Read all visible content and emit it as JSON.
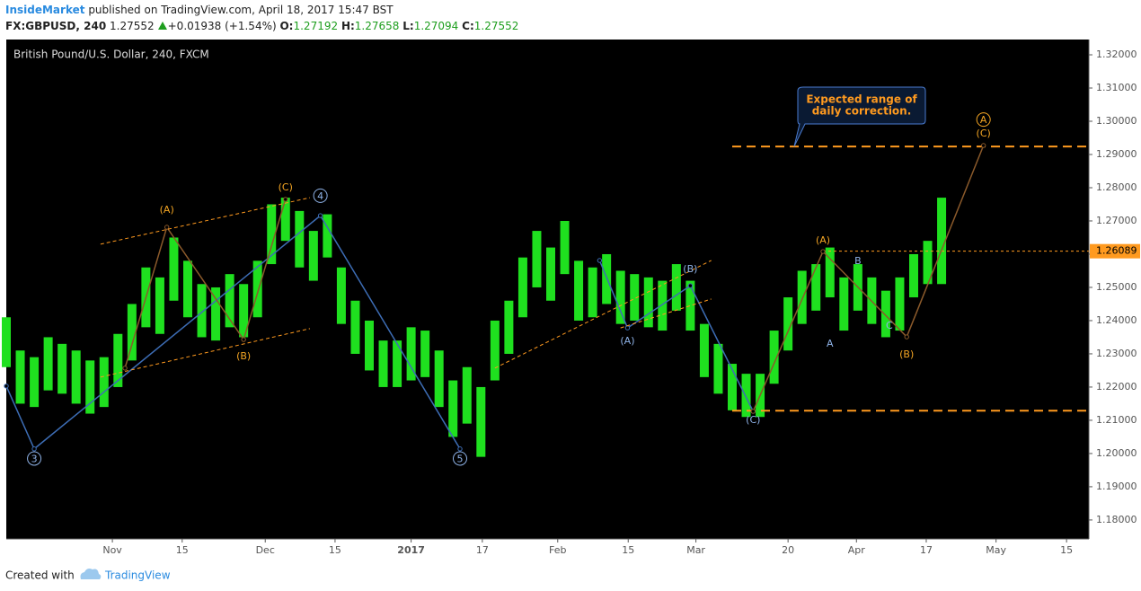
{
  "header": {
    "author": "InsideMarket",
    "published": "published on TradingView.com, April 18, 2017 15:47 BST",
    "symbol": "FX:GBPUSD, 240",
    "last": "1.27552",
    "change": "+0.01938 (+1.54%)",
    "ohlc": [
      {
        "label": "O:",
        "value": "1.27192"
      },
      {
        "label": "H:",
        "value": "1.27658"
      },
      {
        "label": "L:",
        "value": "1.27094"
      },
      {
        "label": "C:",
        "value": "1.27552"
      }
    ]
  },
  "chart_data": {
    "type": "range_bar",
    "title": "British Pound/U.S. Dollar, 240, FXCM",
    "color": "#1fe01f",
    "xlim": [
      0,
      155.1
    ],
    "ylim": [
      1.1743,
      1.3246
    ],
    "xticks": [
      {
        "value": 15.2,
        "label": "Nov"
      },
      {
        "value": 25.2,
        "label": "15"
      },
      {
        "value": 37.1,
        "label": "Dec"
      },
      {
        "value": 47.1,
        "label": "15"
      },
      {
        "value": 58.0,
        "label": "2017"
      },
      {
        "value": 68.2,
        "label": "17"
      },
      {
        "value": 79.0,
        "label": "Feb"
      },
      {
        "value": 89.1,
        "label": "15"
      },
      {
        "value": 98.8,
        "label": "Mar"
      },
      {
        "value": 112.0,
        "label": "20"
      },
      {
        "value": 121.8,
        "label": "Apr"
      },
      {
        "value": 131.8,
        "label": "17"
      },
      {
        "value": 141.8,
        "label": "May"
      },
      {
        "value": 151.9,
        "label": "15"
      }
    ],
    "yticks": [
      {
        "value": 1.18,
        "label": "1.18000"
      },
      {
        "value": 1.19,
        "label": "1.19000"
      },
      {
        "value": 1.2,
        "label": "1.20000"
      },
      {
        "value": 1.21,
        "label": "1.21000"
      },
      {
        "value": 1.22,
        "label": "1.22000"
      },
      {
        "value": 1.23,
        "label": "1.23000"
      },
      {
        "value": 1.24,
        "label": "1.24000"
      },
      {
        "value": 1.25,
        "label": "1.25000"
      },
      {
        "value": 1.26,
        "label": "1.26000"
      },
      {
        "value": 1.27,
        "label": "1.27000"
      },
      {
        "value": 1.28,
        "label": "1.28000"
      },
      {
        "value": 1.29,
        "label": "1.29000"
      },
      {
        "value": 1.3,
        "label": "1.30000"
      },
      {
        "value": 1.31,
        "label": "1.31000"
      },
      {
        "value": 1.32,
        "label": "1.32000"
      }
    ],
    "x": [
      0,
      2,
      4,
      6,
      8,
      10,
      12,
      14,
      16,
      18,
      20,
      22,
      24,
      26,
      28,
      30,
      32,
      34,
      36,
      38,
      40,
      42,
      44,
      46,
      48,
      50,
      52,
      54,
      56,
      58,
      60,
      62,
      64,
      66,
      68,
      70,
      72,
      74,
      76,
      78,
      80,
      82,
      84,
      86,
      88,
      90,
      92,
      94,
      96,
      98,
      100,
      102,
      104,
      106,
      108,
      110,
      112,
      114,
      116,
      118,
      120,
      122,
      124,
      126,
      128,
      130,
      132,
      134
    ],
    "low": [
      1.226,
      1.215,
      1.214,
      1.219,
      1.218,
      1.215,
      1.212,
      1.214,
      1.22,
      1.228,
      1.238,
      1.236,
      1.246,
      1.241,
      1.235,
      1.234,
      1.238,
      1.235,
      1.241,
      1.257,
      1.264,
      1.256,
      1.252,
      1.259,
      1.239,
      1.23,
      1.225,
      1.22,
      1.22,
      1.222,
      1.223,
      1.214,
      1.205,
      1.209,
      1.199,
      1.222,
      1.23,
      1.241,
      1.25,
      1.246,
      1.254,
      1.24,
      1.241,
      1.245,
      1.239,
      1.24,
      1.238,
      1.237,
      1.243,
      1.237,
      1.223,
      1.218,
      1.213,
      1.211,
      1.211,
      1.221,
      1.231,
      1.239,
      1.243,
      1.247,
      1.237,
      1.243,
      1.239,
      1.235,
      1.237,
      1.247,
      1.251,
      1.251
    ],
    "high": [
      1.241,
      1.231,
      1.229,
      1.235,
      1.233,
      1.231,
      1.228,
      1.229,
      1.236,
      1.245,
      1.256,
      1.253,
      1.265,
      1.258,
      1.251,
      1.25,
      1.254,
      1.251,
      1.258,
      1.275,
      1.277,
      1.273,
      1.267,
      1.272,
      1.256,
      1.246,
      1.24,
      1.234,
      1.234,
      1.238,
      1.237,
      1.231,
      1.222,
      1.226,
      1.22,
      1.24,
      1.246,
      1.259,
      1.267,
      1.262,
      1.27,
      1.258,
      1.256,
      1.26,
      1.255,
      1.254,
      1.253,
      1.252,
      1.257,
      1.252,
      1.239,
      1.233,
      1.227,
      1.224,
      1.224,
      1.237,
      1.247,
      1.255,
      1.257,
      1.262,
      1.253,
      1.257,
      1.253,
      1.249,
      1.253,
      1.26,
      1.264,
      1.277
    ],
    "drawings": [
      {
        "color": "#3d6db5",
        "style": "solid",
        "x": [
          0,
          4,
          45,
          65
        ],
        "y": [
          1.2203,
          1.2014,
          1.2716,
          1.2014
        ]
      },
      {
        "color": "#3d6db5",
        "style": "solid",
        "x": [
          85,
          89,
          98,
          107
        ],
        "y": [
          1.2581,
          1.2378,
          1.2505,
          1.2127
        ]
      },
      {
        "color": "#8b5a2b",
        "style": "solid",
        "x": [
          17,
          23,
          34,
          40
        ],
        "y": [
          1.2257,
          1.2681,
          1.2343,
          1.2765
        ]
      },
      {
        "color": "#8b5a2b",
        "style": "solid",
        "x": [
          107,
          117,
          129,
          140
        ],
        "y": [
          1.2127,
          1.2608,
          1.2351,
          1.2927
        ]
      },
      {
        "color": "#ff9a1f",
        "style": "short",
        "x": [
          13.5,
          43.5
        ],
        "y": [
          1.263,
          1.277
        ]
      },
      {
        "color": "#ff9a1f",
        "style": "short",
        "x": [
          13.5,
          43.5
        ],
        "y": [
          1.223,
          1.2376
        ]
      },
      {
        "color": "#ff9a1f",
        "style": "short",
        "x": [
          70,
          101
        ],
        "y": [
          1.2257,
          1.2581
        ]
      },
      {
        "color": "#ff9a1f",
        "style": "short",
        "x": [
          88,
          101
        ],
        "y": [
          1.2378,
          1.2465
        ]
      }
    ],
    "levels": [
      {
        "value": 1.2924,
        "from": 104,
        "style": "long"
      },
      {
        "value": 1.2129,
        "from": 104,
        "style": "long"
      }
    ],
    "price_line": {
      "value": 1.26089,
      "from": 117,
      "color": "#ff9a1f"
    },
    "annotations": [
      {
        "text": "3",
        "x": 4,
        "y": 1.1985,
        "color": "#8fb3e8",
        "circled": true
      },
      {
        "text": "4",
        "x": 45,
        "y": 1.2776,
        "color": "#8fb3e8",
        "circled": true
      },
      {
        "text": "5",
        "x": 65,
        "y": 1.1985,
        "color": "#8fb3e8",
        "circled": true
      },
      {
        "text": "(A)",
        "x": 23,
        "y": 1.2735,
        "color": "#f5a623",
        "circled": false
      },
      {
        "text": "(B)",
        "x": 34,
        "y": 1.2295,
        "color": "#f5a623",
        "circled": false
      },
      {
        "text": "(C)",
        "x": 40,
        "y": 1.2803,
        "color": "#f5a623",
        "circled": false
      },
      {
        "text": "(A)",
        "x": 89,
        "y": 1.2341,
        "color": "#8fb3e8",
        "circled": false
      },
      {
        "text": "(B)",
        "x": 98,
        "y": 1.2557,
        "color": "#8fb3e8",
        "circled": false
      },
      {
        "text": "(C)",
        "x": 107,
        "y": 1.2102,
        "color": "#8fb3e8",
        "circled": false
      },
      {
        "text": "(A)",
        "x": 117,
        "y": 1.2643,
        "color": "#f5a623",
        "circled": false
      },
      {
        "text": "A",
        "x": 118,
        "y": 1.2332,
        "color": "#8fb3e8",
        "circled": false
      },
      {
        "text": "B",
        "x": 122,
        "y": 1.2581,
        "color": "#8fb3e8",
        "circled": false
      },
      {
        "text": "C",
        "x": 126.5,
        "y": 1.2386,
        "color": "#8fb3e8",
        "circled": false
      },
      {
        "text": "(B)",
        "x": 129,
        "y": 1.23,
        "color": "#f5a623",
        "circled": false
      },
      {
        "text": "(C)",
        "x": 140,
        "y": 1.2965,
        "color": "#f5a623",
        "circled": false
      },
      {
        "text": "A",
        "x": 140,
        "y": 1.3005,
        "color": "#f5a623",
        "circled": true
      }
    ],
    "callout": [
      "Expected range of",
      "daily correction."
    ]
  },
  "footer": {
    "created": "Created with",
    "brand": "TradingView"
  }
}
